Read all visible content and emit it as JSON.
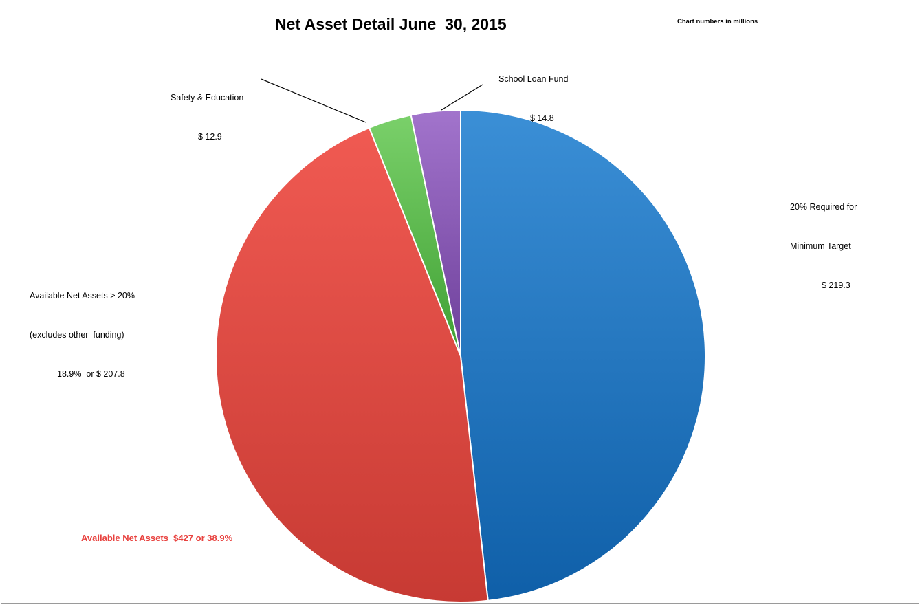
{
  "chart_data": {
    "type": "pie",
    "title": "Net Asset Detail June  30, 2015",
    "note": "Chart numbers in millions",
    "slices": [
      {
        "name": "20% Required for Minimum Target",
        "value": 219.3,
        "color": "#1f78c8"
      },
      {
        "name": "Available Net Assets > 20% (excludes other funding)",
        "value": 207.8,
        "color": "#e8423f"
      },
      {
        "name": "Safety & Education",
        "value": 12.9,
        "color": "#5cc24a"
      },
      {
        "name": "School Loan Fund",
        "value": 14.8,
        "color": "#8b5bb8"
      }
    ],
    "labels": {
      "required_line1": "20% Required for",
      "required_line2": "Minimum Target",
      "required_value": "$ 219.3",
      "available_line1": "Available Net Assets > 20%",
      "available_line2": "(excludes other  funding)",
      "available_value": "18.9%  or $ 207.8",
      "safety_line1": "Safety & Education",
      "safety_value": "$ 12.9",
      "loan_line1": "School Loan Fund",
      "loan_value": "$ 14.8"
    },
    "summary": "Available Net Assets  $427 or 38.9%"
  }
}
